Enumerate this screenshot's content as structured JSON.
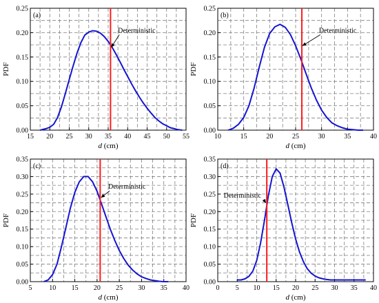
{
  "chart_data": [
    {
      "panel": "(a)",
      "type": "line",
      "xlabel_var": "d",
      "xlabel_unit": " (cm)",
      "ylabel": "PDF",
      "xlim": [
        15,
        55
      ],
      "ylim": [
        0,
        0.25
      ],
      "xticks": [
        15,
        20,
        25,
        30,
        35,
        40,
        45,
        50,
        55
      ],
      "yticks": [
        "0.00",
        "0.05",
        "0.10",
        "0.15",
        "0.20",
        "0.25"
      ],
      "grid": true,
      "series": [
        {
          "x": [
            17.5,
            19,
            20,
            21,
            22,
            23,
            24,
            25,
            26,
            27,
            28,
            29,
            30,
            31,
            32,
            33,
            34,
            35,
            36,
            37,
            38,
            39,
            40,
            41,
            42,
            43,
            44,
            45,
            46,
            47,
            48,
            49,
            50,
            51,
            52,
            53,
            54
          ],
          "values": [
            0.0,
            0.003,
            0.006,
            0.012,
            0.026,
            0.048,
            0.075,
            0.104,
            0.132,
            0.158,
            0.18,
            0.195,
            0.201,
            0.204,
            0.203,
            0.199,
            0.192,
            0.182,
            0.17,
            0.156,
            0.141,
            0.125,
            0.11,
            0.095,
            0.081,
            0.068,
            0.056,
            0.045,
            0.035,
            0.026,
            0.019,
            0.013,
            0.009,
            0.005,
            0.003,
            0.001,
            0.0
          ]
        }
      ],
      "deterministic_x": 35.6,
      "annotation": {
        "text": "Deterministic",
        "text_at": [
          37.5,
          0.2
        ],
        "arrow_to": [
          35.8,
          0.17
        ]
      }
    },
    {
      "panel": "(b)",
      "type": "line",
      "xlabel_var": "d",
      "xlabel_unit": " (cm)",
      "ylabel": "PDF",
      "xlim": [
        10,
        40
      ],
      "ylim": [
        0,
        0.25
      ],
      "xticks": [
        10,
        15,
        20,
        25,
        30,
        35,
        40
      ],
      "yticks": [
        "0.00",
        "0.05",
        "0.10",
        "0.15",
        "0.20",
        "0.25"
      ],
      "grid": true,
      "series": [
        {
          "x": [
            12,
            13,
            14,
            15,
            16,
            17,
            18,
            19,
            20,
            21,
            22,
            23,
            24,
            25,
            26,
            27,
            28,
            29,
            30,
            31,
            32,
            33,
            34,
            35,
            36,
            37,
            38
          ],
          "values": [
            0.0,
            0.004,
            0.012,
            0.026,
            0.05,
            0.086,
            0.13,
            0.17,
            0.198,
            0.212,
            0.217,
            0.211,
            0.196,
            0.173,
            0.146,
            0.116,
            0.087,
            0.062,
            0.041,
            0.026,
            0.015,
            0.009,
            0.005,
            0.002,
            0.001,
            0.0,
            0.0
          ]
        }
      ],
      "deterministic_x": 26.2,
      "annotation": {
        "text": "Deterministic",
        "text_at": [
          29.5,
          0.2
        ],
        "arrow_to": [
          26.3,
          0.173
        ]
      }
    },
    {
      "panel": "(c)",
      "type": "line",
      "xlabel_var": "d",
      "xlabel_unit": " (cm)",
      "ylabel": "PDF",
      "xlim": [
        5,
        40
      ],
      "ylim": [
        0,
        0.35
      ],
      "xticks": [
        5,
        10,
        15,
        20,
        25,
        30,
        35,
        40
      ],
      "yticks": [
        "0.00",
        "0.05",
        "0.10",
        "0.15",
        "0.20",
        "0.25",
        "0.30",
        "0.35"
      ],
      "grid": true,
      "series": [
        {
          "x": [
            8,
            9,
            10,
            11,
            12,
            13,
            14,
            15,
            16,
            17,
            18,
            19,
            20,
            21,
            22,
            23,
            24,
            25,
            26,
            27,
            28,
            29,
            30,
            31,
            32,
            33,
            34,
            35,
            36
          ],
          "values": [
            0.0,
            0.005,
            0.02,
            0.05,
            0.1,
            0.155,
            0.21,
            0.255,
            0.285,
            0.3,
            0.3,
            0.285,
            0.258,
            0.222,
            0.185,
            0.149,
            0.117,
            0.089,
            0.066,
            0.047,
            0.033,
            0.022,
            0.014,
            0.009,
            0.005,
            0.003,
            0.001,
            0.0,
            0.0
          ]
        }
      ],
      "deterministic_x": 20.7,
      "annotation": {
        "text": "Deterministic",
        "text_at": [
          22.5,
          0.265
        ],
        "arrow_to": [
          20.9,
          0.24
        ]
      }
    },
    {
      "panel": "(d)",
      "type": "line",
      "xlabel_var": "d",
      "xlabel_unit": " (cm)",
      "ylabel": "PDF",
      "xlim": [
        0,
        40
      ],
      "ylim": [
        0,
        0.35
      ],
      "xticks": [
        0,
        5,
        10,
        15,
        20,
        25,
        30,
        35,
        40
      ],
      "yticks": [
        "0.00",
        "0.05",
        "0.10",
        "0.15",
        "0.20",
        "0.25",
        "0.30",
        "0.35"
      ],
      "grid": true,
      "series": [
        {
          "x": [
            5,
            6,
            7,
            8,
            9,
            10,
            11,
            12,
            13,
            14,
            15,
            16,
            17,
            18,
            19,
            20,
            21,
            22,
            23,
            24,
            25,
            26,
            27,
            28,
            29,
            30,
            32,
            34,
            36,
            38
          ],
          "values": [
            0.005,
            0.005,
            0.008,
            0.015,
            0.03,
            0.06,
            0.11,
            0.175,
            0.245,
            0.3,
            0.322,
            0.31,
            0.27,
            0.22,
            0.168,
            0.122,
            0.085,
            0.057,
            0.037,
            0.024,
            0.016,
            0.011,
            0.008,
            0.006,
            0.005,
            0.005,
            0.005,
            0.005,
            0.005,
            0.005
          ]
        }
      ],
      "deterministic_x": 12.6,
      "annotation": {
        "text": "Deterministic",
        "text_at": [
          1.5,
          0.24
        ],
        "arrow_to": [
          12.4,
          0.225
        ]
      }
    }
  ]
}
